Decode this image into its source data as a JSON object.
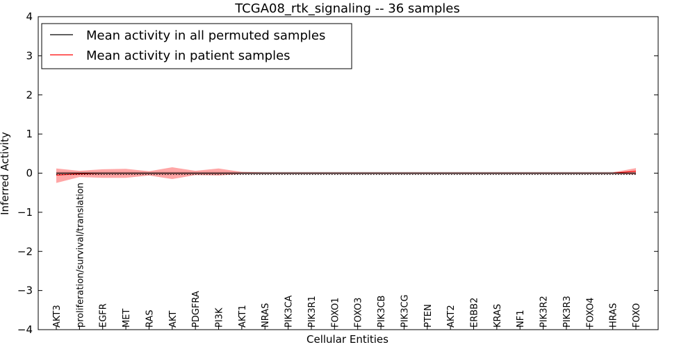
{
  "chart_data": {
    "type": "line",
    "title": "TCGA08_rtk_signaling -- 36 samples",
    "xlabel": "Cellular Entities",
    "ylabel": "Inferred Activity",
    "ylim": [
      -4,
      4
    ],
    "yticks": [
      -4,
      -3,
      -2,
      -1,
      0,
      1,
      2,
      3,
      4
    ],
    "ytick_labels": [
      "−4",
      "−3",
      "−2",
      "−1",
      "0",
      "1",
      "2",
      "3",
      "4"
    ],
    "categories": [
      "AKT3",
      "proliferation/survival/translation",
      "EGFR",
      "MET",
      "RAS",
      "AKT",
      "PDGFRA",
      "PI3K",
      "AKT1",
      "NRAS",
      "PIK3CA",
      "PIK3R1",
      "FOXO1",
      "FOXO3",
      "PIK3CB",
      "PIK3CG",
      "PTEN",
      "AKT2",
      "ERBB2",
      "KRAS",
      "NF1",
      "PIK3R2",
      "PIK3R3",
      "FOXO4",
      "HRAS",
      "FOXO"
    ],
    "legend_position": "top-left",
    "series": [
      {
        "name": "Mean activity in all permuted samples",
        "color": "#000000",
        "values": [
          0.0,
          0.0,
          0.0,
          0.0,
          0.0,
          0.0,
          0.0,
          0.0,
          0.0,
          0.0,
          0.0,
          0.0,
          0.0,
          0.0,
          0.0,
          0.0,
          0.0,
          0.0,
          0.0,
          0.0,
          0.0,
          0.0,
          0.0,
          0.0,
          0.0,
          0.0
        ],
        "band_upper": [
          0.04,
          0.04,
          0.04,
          0.04,
          0.04,
          0.04,
          0.04,
          0.04,
          0.04,
          0.04,
          0.04,
          0.04,
          0.04,
          0.04,
          0.04,
          0.04,
          0.04,
          0.04,
          0.04,
          0.04,
          0.04,
          0.04,
          0.04,
          0.04,
          0.04,
          0.04
        ],
        "band_lower": [
          -0.05,
          -0.05,
          -0.05,
          -0.05,
          -0.05,
          -0.05,
          -0.05,
          -0.05,
          -0.05,
          -0.05,
          -0.05,
          -0.05,
          -0.05,
          -0.05,
          -0.05,
          -0.05,
          -0.05,
          -0.05,
          -0.05,
          -0.05,
          -0.05,
          -0.05,
          -0.05,
          -0.05,
          -0.05,
          -0.05
        ],
        "band_color": "#bfbfbf"
      },
      {
        "name": "Mean activity in patient samples",
        "color": "#ff0000",
        "values": [
          -0.05,
          -0.02,
          0.0,
          0.0,
          0.0,
          0.0,
          0.0,
          0.0,
          0.0,
          0.0,
          0.0,
          0.0,
          0.0,
          0.0,
          0.0,
          0.0,
          0.0,
          0.0,
          0.0,
          0.0,
          0.0,
          0.0,
          0.0,
          0.0,
          0.0,
          0.05
        ],
        "band_upper": [
          0.12,
          0.06,
          0.1,
          0.11,
          0.05,
          0.15,
          0.06,
          0.12,
          0.03,
          0.02,
          0.02,
          0.02,
          0.02,
          0.02,
          0.02,
          0.02,
          0.02,
          0.02,
          0.02,
          0.02,
          0.02,
          0.02,
          0.02,
          0.02,
          0.02,
          0.13
        ],
        "band_lower": [
          -0.25,
          -0.1,
          -0.12,
          -0.12,
          -0.06,
          -0.15,
          -0.05,
          -0.06,
          -0.02,
          -0.02,
          -0.02,
          -0.02,
          -0.02,
          -0.02,
          -0.02,
          -0.02,
          -0.02,
          -0.02,
          -0.02,
          -0.02,
          -0.02,
          -0.02,
          -0.02,
          -0.02,
          -0.02,
          -0.03
        ],
        "band_color": "#ff0000"
      }
    ]
  }
}
